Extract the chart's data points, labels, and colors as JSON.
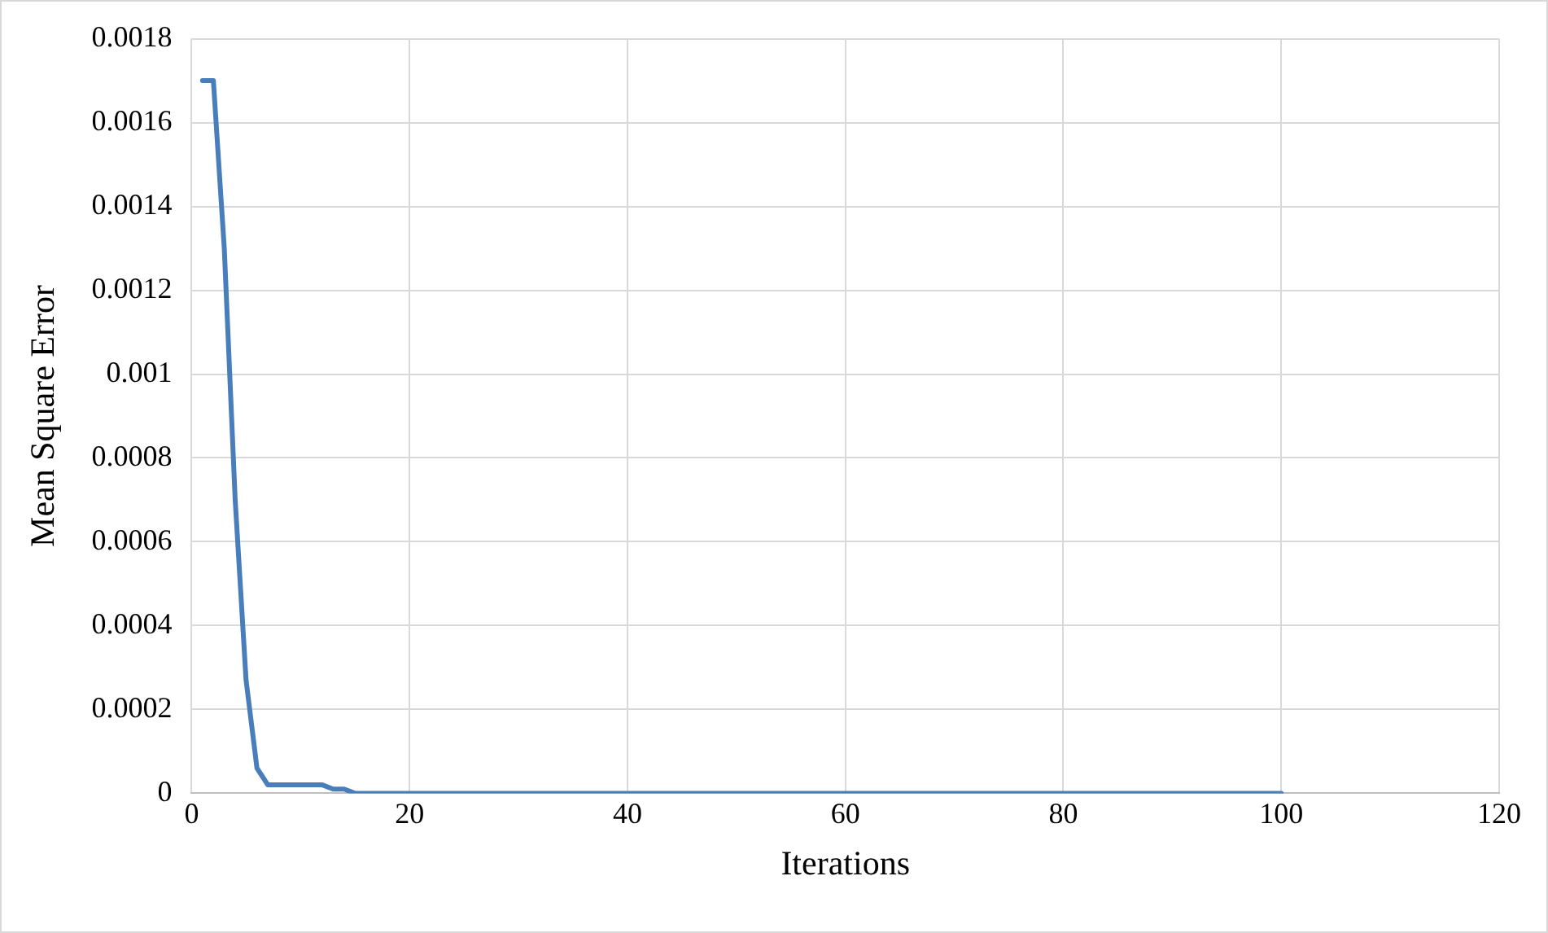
{
  "chart_data": {
    "type": "line",
    "xlabel": "Iterations",
    "ylabel": "Mean Square Error",
    "x": [
      1,
      2,
      3,
      4,
      5,
      6,
      7,
      8,
      9,
      10,
      11,
      12,
      13,
      14,
      15,
      16,
      17,
      18,
      20,
      30,
      40,
      50,
      60,
      70,
      80,
      90,
      100
    ],
    "series": [
      {
        "color": "#4a7ebb",
        "values": [
          0.0017,
          0.0017,
          0.0013,
          0.0007,
          0.00027,
          6e-05,
          2e-05,
          2e-05,
          2e-05,
          2e-05,
          2e-05,
          2e-05,
          1e-05,
          1e-05,
          0,
          0,
          0,
          0,
          0,
          0,
          0,
          0,
          0,
          0,
          0,
          0,
          0
        ]
      }
    ],
    "xlim": [
      0,
      120
    ],
    "xticks": [
      0,
      20,
      40,
      60,
      80,
      100,
      120
    ],
    "ylim": [
      0,
      0.0018
    ],
    "yticks": [
      0,
      0.0002,
      0.0004,
      0.0006,
      0.0008,
      0.001,
      0.0012,
      0.0014,
      0.0016,
      0.0018
    ],
    "grid": true,
    "legend": false,
    "marker": "none",
    "line_style": "solid"
  }
}
